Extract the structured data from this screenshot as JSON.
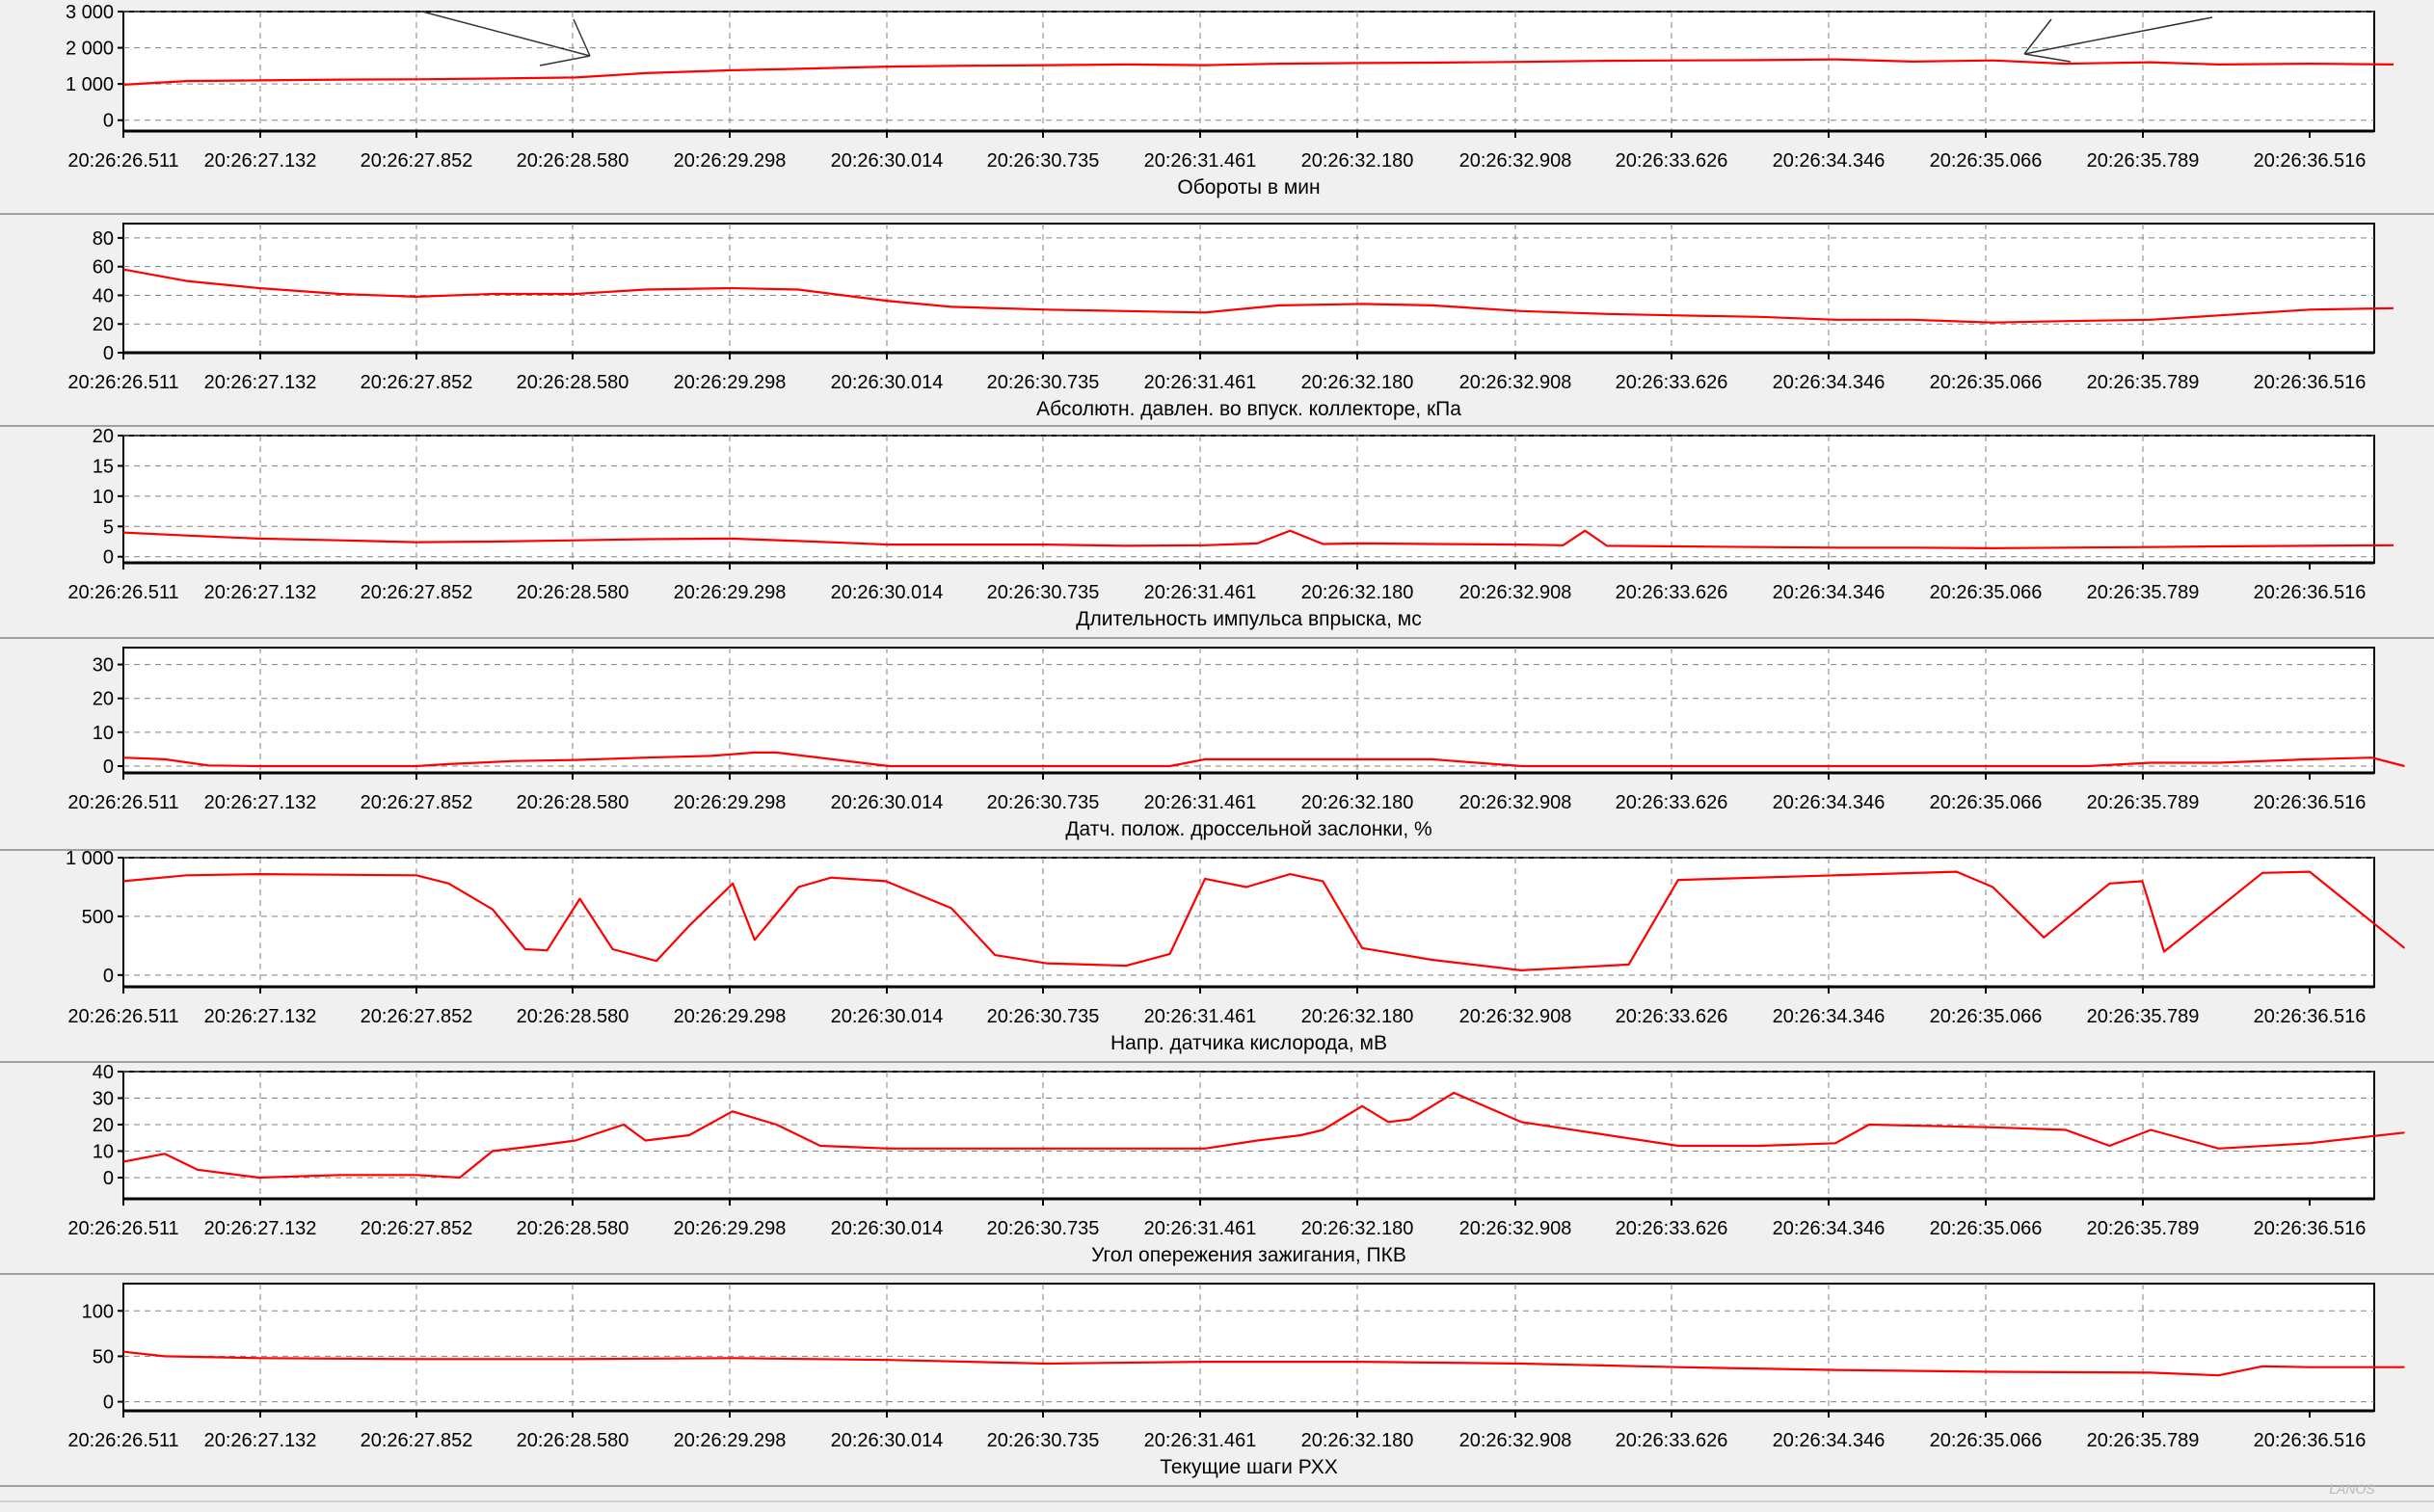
{
  "colors": {
    "background": "#f0f0f0",
    "series": "#ff0000",
    "grid": "#808080",
    "axis": "#000000",
    "frame": "#a0a0a0"
  },
  "time_ticks": [
    "20:26:26.511",
    "20:26:27.132",
    "20:26:27.852",
    "20:26:28.580",
    "20:26:29.298",
    "20:26:30.014",
    "20:26:30.735",
    "20:26:31.461",
    "20:26:32.180",
    "20:26:32.908",
    "20:26:33.626",
    "20:26:34.346",
    "20:26:35.066",
    "20:26:35.789",
    "20:26:36.516"
  ],
  "chart_data": [
    {
      "type": "line",
      "xlabel": "Обороты в мин",
      "ylim": [
        -300,
        3000
      ],
      "yticks": [
        0,
        1000,
        2000,
        3000
      ],
      "ytick_labels": [
        "0",
        "1 000",
        "2 000",
        "3 000"
      ],
      "grid": true,
      "x": [
        "20:26:26.511",
        "20:26:26.8",
        "20:26:27.132",
        "20:26:27.5",
        "20:26:27.852",
        "20:26:28.2",
        "20:26:28.580",
        "20:26:28.9",
        "20:26:29.298",
        "20:26:29.6",
        "20:26:30.014",
        "20:26:30.3",
        "20:26:30.735",
        "20:26:31.1",
        "20:26:31.461",
        "20:26:31.8",
        "20:26:32.180",
        "20:26:32.5",
        "20:26:32.908",
        "20:26:33.3",
        "20:26:33.626",
        "20:26:34.0",
        "20:26:34.346",
        "20:26:34.7",
        "20:26:35.066",
        "20:26:35.4",
        "20:26:35.789",
        "20:26:36.1",
        "20:26:36.516",
        "20:26:36.9"
      ],
      "values": [
        980,
        1080,
        1100,
        1120,
        1130,
        1150,
        1180,
        1300,
        1380,
        1420,
        1480,
        1500,
        1520,
        1540,
        1520,
        1560,
        1580,
        1590,
        1610,
        1640,
        1650,
        1660,
        1680,
        1620,
        1650,
        1560,
        1600,
        1540,
        1560,
        1540
      ],
      "annotations": [
        "arrow",
        "arrow"
      ]
    },
    {
      "type": "line",
      "xlabel": "Абсолютн. давлен. во впуск. коллекторе, кПа",
      "ylim": [
        0,
        90
      ],
      "yticks": [
        0,
        20,
        40,
        60,
        80
      ],
      "ytick_labels": [
        "0",
        "20",
        "40",
        "60",
        "80"
      ],
      "grid": true,
      "x": [
        "20:26:26.511",
        "20:26:26.8",
        "20:26:27.132",
        "20:26:27.5",
        "20:26:27.852",
        "20:26:28.2",
        "20:26:28.580",
        "20:26:28.9",
        "20:26:29.298",
        "20:26:29.6",
        "20:26:30.014",
        "20:26:30.3",
        "20:26:30.735",
        "20:26:31.1",
        "20:26:31.461",
        "20:26:31.8",
        "20:26:32.180",
        "20:26:32.5",
        "20:26:32.908",
        "20:26:33.3",
        "20:26:33.626",
        "20:26:34.0",
        "20:26:34.346",
        "20:26:34.7",
        "20:26:35.066",
        "20:26:35.4",
        "20:26:35.789",
        "20:26:36.1",
        "20:26:36.516",
        "20:26:36.9"
      ],
      "values": [
        58,
        50,
        45,
        41,
        39,
        41,
        41,
        44,
        45,
        44,
        36,
        32,
        30,
        29,
        28,
        33,
        34,
        33,
        29,
        27,
        26,
        25,
        23,
        23,
        21,
        22,
        23,
        26,
        30,
        31
      ]
    },
    {
      "type": "line",
      "xlabel": "Длительность импульса впрыска, мс",
      "ylim": [
        -1,
        20
      ],
      "yticks": [
        0,
        5,
        10,
        15,
        20
      ],
      "ytick_labels": [
        "0",
        "5",
        "10",
        "15",
        "20"
      ],
      "grid": true,
      "x": [
        "20:26:26.511",
        "20:26:26.8",
        "20:26:27.132",
        "20:26:27.5",
        "20:26:27.852",
        "20:26:28.2",
        "20:26:28.580",
        "20:26:28.9",
        "20:26:29.298",
        "20:26:29.6",
        "20:26:30.014",
        "20:26:30.3",
        "20:26:30.735",
        "20:26:31.1",
        "20:26:31.461",
        "20:26:31.7",
        "20:26:31.85",
        "20:26:32.0",
        "20:26:32.180",
        "20:26:32.5",
        "20:26:32.908",
        "20:26:33.1",
        "20:26:33.2",
        "20:26:33.3",
        "20:26:33.626",
        "20:26:34.0",
        "20:26:34.346",
        "20:26:34.7",
        "20:26:35.066",
        "20:26:35.4",
        "20:26:35.789",
        "20:26:36.1",
        "20:26:36.516",
        "20:26:36.9"
      ],
      "values": [
        4.0,
        3.5,
        3.0,
        2.7,
        2.4,
        2.5,
        2.7,
        2.9,
        3.0,
        2.6,
        2.0,
        2.0,
        2.0,
        1.8,
        1.9,
        2.2,
        4.3,
        2.1,
        2.2,
        2.1,
        2.0,
        1.9,
        4.3,
        1.8,
        1.7,
        1.6,
        1.5,
        1.5,
        1.4,
        1.5,
        1.6,
        1.7,
        1.8,
        1.9
      ]
    },
    {
      "type": "line",
      "xlabel": "Датч. полож. дроссельной заслонки, %",
      "ylim": [
        -2,
        35
      ],
      "yticks": [
        0,
        10,
        20,
        30
      ],
      "ytick_labels": [
        "0",
        "10",
        "20",
        "30"
      ],
      "grid": true,
      "x": [
        "20:26:26.511",
        "20:26:26.7",
        "20:26:26.9",
        "20:26:27.132",
        "20:26:27.852",
        "20:26:28.0",
        "20:26:28.3",
        "20:26:28.580",
        "20:26:28.9",
        "20:26:29.2",
        "20:26:29.4",
        "20:26:29.5",
        "20:26:30.014",
        "20:26:30.735",
        "20:26:31.3",
        "20:26:31.461",
        "20:26:31.8",
        "20:26:32.180",
        "20:26:32.5",
        "20:26:32.6",
        "20:26:32.908",
        "20:26:33.626",
        "20:26:34.346",
        "20:26:35.066",
        "20:26:35.5",
        "20:26:35.789",
        "20:26:36.1",
        "20:26:36.516",
        "20:26:36.8",
        "20:26:36.95"
      ],
      "values": [
        2.5,
        2.0,
        0.2,
        0.0,
        0.0,
        0.6,
        1.5,
        1.8,
        2.5,
        3.0,
        4.0,
        4.0,
        0.0,
        0.0,
        0.0,
        2.0,
        2.0,
        2.0,
        2.0,
        1.5,
        0.0,
        0.0,
        0.0,
        0.0,
        0.0,
        1.0,
        1.0,
        2.0,
        2.5,
        0.0
      ]
    },
    {
      "type": "line",
      "xlabel": "Напр. датчика кислорода, мВ",
      "ylim": [
        -100,
        1000
      ],
      "yticks": [
        0,
        500,
        1000
      ],
      "ytick_labels": [
        "0",
        "500",
        "1 000"
      ],
      "grid": true,
      "x": [
        "20:26:26.511",
        "20:26:26.8",
        "20:26:27.132",
        "20:26:27.852",
        "20:26:28.0",
        "20:26:28.2",
        "20:26:28.35",
        "20:26:28.45",
        "20:26:28.60",
        "20:26:28.75",
        "20:26:28.95",
        "20:26:29.1",
        "20:26:29.3",
        "20:26:29.4",
        "20:26:29.6",
        "20:26:29.75",
        "20:26:30.0",
        "20:26:30.3",
        "20:26:30.5",
        "20:26:30.735",
        "20:26:31.1",
        "20:26:31.3",
        "20:26:31.461",
        "20:26:31.65",
        "20:26:31.85",
        "20:26:32.0",
        "20:26:32.180",
        "20:26:32.5",
        "20:26:32.908",
        "20:26:33.4",
        "20:26:33.626",
        "20:26:34.346",
        "20:26:34.9",
        "20:26:35.066",
        "20:26:35.3",
        "20:26:35.6",
        "20:26:35.75",
        "20:26:35.85",
        "20:26:36.3",
        "20:26:36.516",
        "20:26:36.95"
      ],
      "values": [
        800,
        850,
        860,
        850,
        780,
        560,
        220,
        210,
        650,
        220,
        120,
        420,
        780,
        300,
        750,
        830,
        800,
        570,
        170,
        100,
        80,
        180,
        820,
        750,
        860,
        800,
        230,
        130,
        40,
        90,
        810,
        850,
        880,
        750,
        320,
        780,
        800,
        200,
        870,
        880,
        230
      ]
    },
    {
      "type": "line",
      "xlabel": "Угол опережения зажигания, ПКВ",
      "ylim": [
        -8,
        40
      ],
      "yticks": [
        0,
        10,
        20,
        30,
        40
      ],
      "ytick_labels": [
        "0",
        "10",
        "20",
        "30",
        "40"
      ],
      "grid": true,
      "x": [
        "20:26:26.511",
        "20:26:26.7",
        "20:26:26.85",
        "20:26:27.132",
        "20:26:27.5",
        "20:26:27.852",
        "20:26:28.05",
        "20:26:28.2",
        "20:26:28.4",
        "20:26:28.580",
        "20:26:28.8",
        "20:26:28.9",
        "20:26:29.1",
        "20:26:29.298",
        "20:26:29.5",
        "20:26:29.7",
        "20:26:30.014",
        "20:26:30.735",
        "20:26:31.461",
        "20:26:31.7",
        "20:26:31.9",
        "20:26:32.0",
        "20:26:32.180",
        "20:26:32.3",
        "20:26:32.4",
        "20:26:32.6",
        "20:26:32.908",
        "20:26:33.626",
        "20:26:34.0",
        "20:26:34.346",
        "20:26:34.5",
        "20:26:35.066",
        "20:26:35.4",
        "20:26:35.6",
        "20:26:35.789",
        "20:26:36.1",
        "20:26:36.516",
        "20:26:36.95"
      ],
      "values": [
        6,
        9,
        3,
        0,
        1,
        1,
        0,
        10,
        12,
        14,
        20,
        14,
        16,
        25,
        20,
        12,
        11,
        11,
        11,
        14,
        16,
        18,
        27,
        21,
        22,
        32,
        21,
        12,
        12,
        13,
        20,
        19,
        18,
        12,
        18,
        11,
        13,
        17
      ]
    },
    {
      "type": "line",
      "xlabel": "Текущие шаги РХХ",
      "ylim": [
        -10,
        130
      ],
      "yticks": [
        0,
        50,
        100
      ],
      "ytick_labels": [
        "0",
        "50",
        "100"
      ],
      "grid": true,
      "x": [
        "20:26:26.511",
        "20:26:26.7",
        "20:26:27.132",
        "20:26:27.852",
        "20:26:28.580",
        "20:26:29.298",
        "20:26:30.014",
        "20:26:30.735",
        "20:26:31.461",
        "20:26:32.180",
        "20:26:32.908",
        "20:26:33.626",
        "20:26:34.346",
        "20:26:35.066",
        "20:26:35.789",
        "20:26:36.1",
        "20:26:36.3",
        "20:26:36.516",
        "20:26:36.95"
      ],
      "values": [
        55,
        50,
        48,
        47,
        47,
        48,
        46,
        42,
        44,
        44,
        42,
        38,
        35,
        33,
        32,
        29,
        39,
        38,
        38
      ]
    }
  ],
  "watermark": "LANOS"
}
